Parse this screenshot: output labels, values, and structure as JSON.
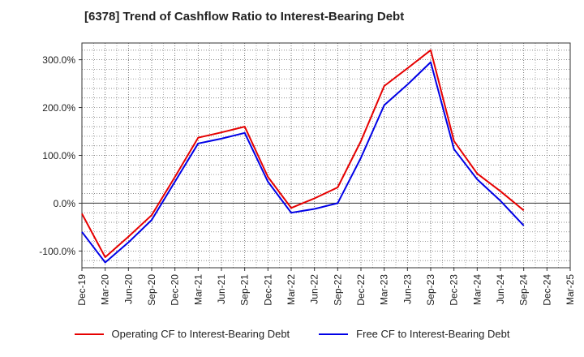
{
  "chart_data": {
    "type": "line",
    "title": "[6378]  Trend of Cashflow Ratio to Interest-Bearing Debt",
    "xlabel": "",
    "ylabel": "",
    "categories": [
      "Dec-19",
      "Mar-20",
      "Jun-20",
      "Sep-20",
      "Dec-20",
      "Mar-21",
      "Jun-21",
      "Sep-21",
      "Dec-21",
      "Mar-22",
      "Jun-22",
      "Sep-22",
      "Dec-22",
      "Mar-23",
      "Jun-23",
      "Sep-23",
      "Dec-23",
      "Mar-24",
      "Jun-24",
      "Sep-24",
      "Dec-24",
      "Mar-25"
    ],
    "ylim": [
      -135,
      335
    ],
    "yticks": [
      -100,
      0,
      100,
      200,
      300
    ],
    "ytick_labels": [
      "-100.0%",
      "0.0%",
      "100.0%",
      "200.0%",
      "300.0%"
    ],
    "grid": true,
    "legend_position": "bottom",
    "series": [
      {
        "name": "Operating CF to Interest-Bearing Debt",
        "color": "#e60000",
        "values": [
          -22,
          -113,
          -70,
          -25,
          55,
          137,
          148,
          160,
          55,
          -10,
          10,
          33,
          130,
          245,
          282,
          320,
          130,
          62,
          25,
          -15,
          null,
          null
        ]
      },
      {
        "name": "Free CF to Interest-Bearing Debt",
        "color": "#0000e6",
        "values": [
          -60,
          -124,
          -82,
          -35,
          45,
          125,
          135,
          147,
          45,
          -20,
          -12,
          0,
          95,
          205,
          248,
          295,
          113,
          50,
          5,
          -47,
          null,
          null
        ]
      }
    ]
  }
}
